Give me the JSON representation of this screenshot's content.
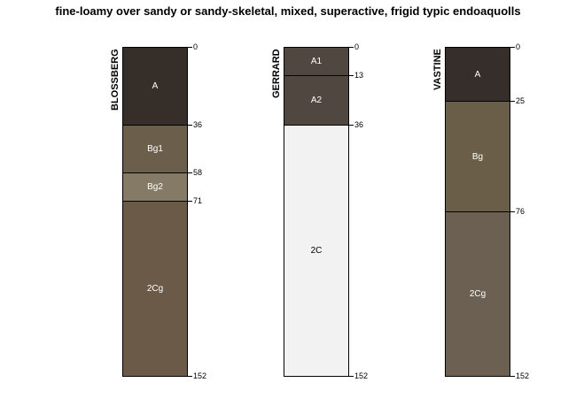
{
  "title": "fine-loamy over sandy or sandy-skeletal, mixed, superactive, frigid typic endoaquolls",
  "profiles": [
    {
      "name": "BLOSSBERG",
      "horizons": [
        {
          "name": "A",
          "top": 0,
          "bottom": 36,
          "color": "#352e29"
        },
        {
          "name": "Bg1",
          "top": 36,
          "bottom": 58,
          "color": "#6b5e4a"
        },
        {
          "name": "Bg2",
          "top": 58,
          "bottom": 71,
          "color": "#857a66"
        },
        {
          "name": "2Cg",
          "top": 71,
          "bottom": 152,
          "color": "#6b5a48"
        }
      ]
    },
    {
      "name": "GERRARD",
      "horizons": [
        {
          "name": "A1",
          "top": 0,
          "bottom": 13,
          "color": "#4f4740"
        },
        {
          "name": "A2",
          "top": 13,
          "bottom": 36,
          "color": "#4f4740"
        },
        {
          "name": "2C",
          "top": 36,
          "bottom": 152,
          "color": "#f2f2f2"
        }
      ]
    },
    {
      "name": "VASTINE",
      "horizons": [
        {
          "name": "A",
          "top": 0,
          "bottom": 25,
          "color": "#352e2a"
        },
        {
          "name": "Bg",
          "top": 25,
          "bottom": 76,
          "color": "#6b5e48"
        },
        {
          "name": "2Cg",
          "top": 76,
          "bottom": 152,
          "color": "#6b6052"
        }
      ]
    }
  ]
}
